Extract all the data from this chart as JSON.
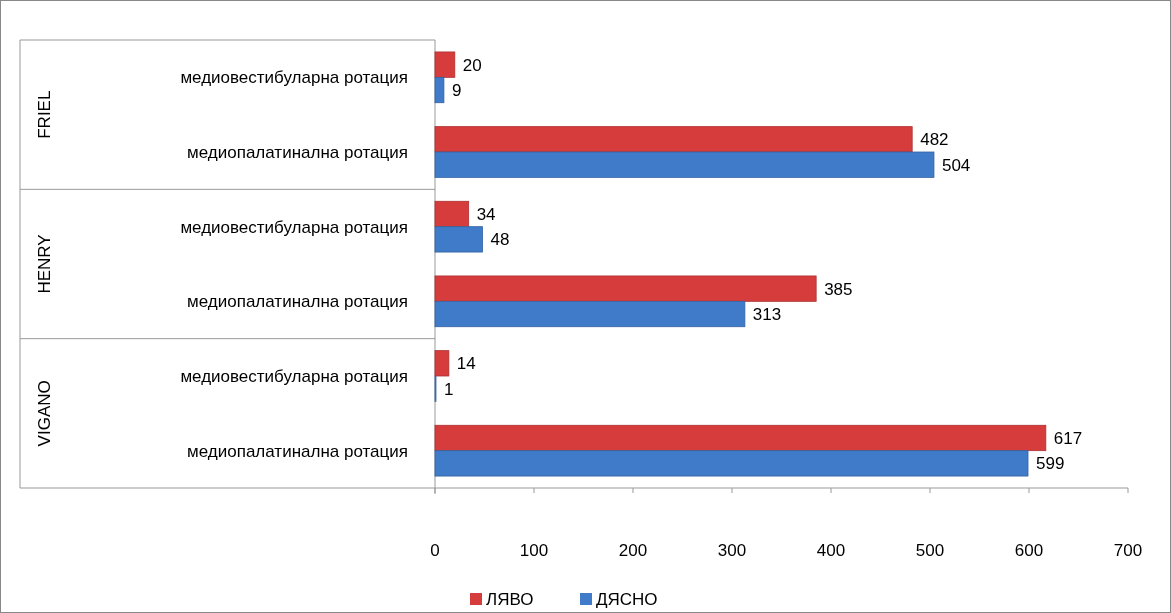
{
  "chart_data": {
    "type": "bar",
    "orientation": "horizontal",
    "categories": [
      "медиовестибуларна ротация",
      "медиопалатинална ротация",
      "медиовестибуларна ротация",
      "медиопалатинална ротация",
      "медиовестибуларна ротация",
      "медиопалатинална ротация"
    ],
    "annotations": [
      "FRIEL",
      "HENRY",
      "VIGANO"
    ],
    "series": [
      {
        "name": "ЛЯВО",
        "color": "#d63c3c",
        "values": [
          20,
          482,
          34,
          385,
          14,
          617
        ]
      },
      {
        "name": "ДЯСНО",
        "color": "#3f7bc8",
        "values": [
          9,
          504,
          48,
          313,
          1,
          599
        ]
      }
    ],
    "xlim": [
      0,
      700
    ],
    "xticks": [
      0,
      100,
      200,
      300,
      400,
      500,
      600,
      700
    ],
    "legend": "bottom",
    "data_labels": true
  }
}
